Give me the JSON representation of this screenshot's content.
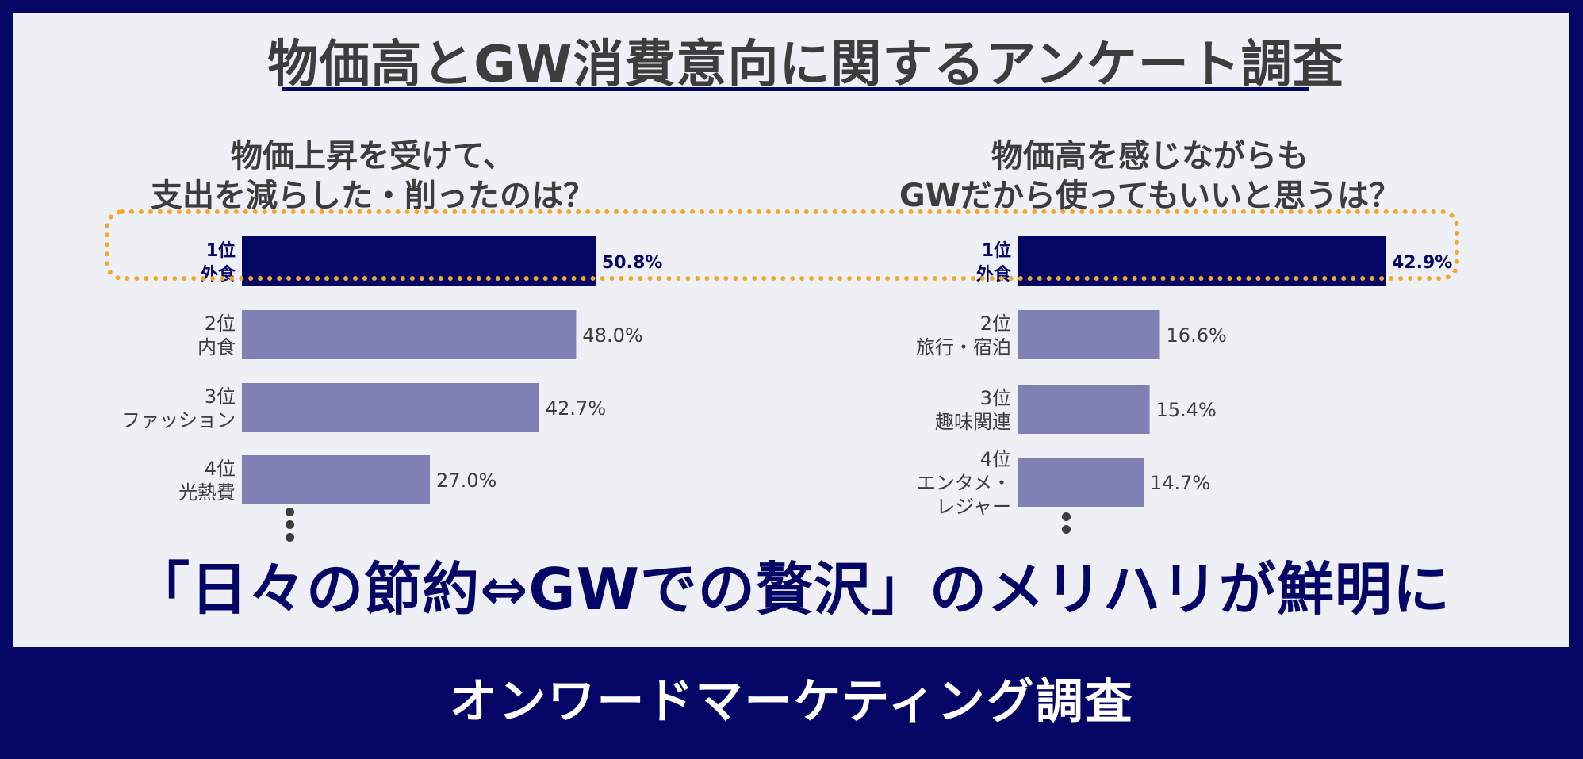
{
  "title": "物価高とGW消費意向に関するアンケート調査",
  "headline": "「日々の節約⇔GWでの贅沢」のメリハリが鮮明に",
  "footer": "オンワードマーケティング調査",
  "colors": {
    "navy": "#050566",
    "bar_top": "#050566",
    "bar_other": "#8080b4",
    "highlight": "#f0a92e",
    "text": "#3d3d3d"
  },
  "chart_data": [
    {
      "type": "bar",
      "orientation": "horizontal",
      "title_lines": [
        "物価上昇を受けて、",
        "支出を減らした・削ったのは？"
      ],
      "categories": [
        [
          "1位",
          "外食"
        ],
        [
          "2位",
          "内食"
        ],
        [
          "3位",
          "ファッション"
        ],
        [
          "4位",
          "光熱費"
        ]
      ],
      "values": [
        50.8,
        48.0,
        42.7,
        27.0
      ],
      "value_labels": [
        "50.8%",
        "48.0%",
        "42.7%",
        "27.0%"
      ]
    },
    {
      "type": "bar",
      "orientation": "horizontal",
      "title_lines": [
        "物価高を感じながらも",
        "GWだから使ってもいいと思うは？"
      ],
      "categories": [
        [
          "1位",
          "外食"
        ],
        [
          "2位",
          "旅行・宿泊"
        ],
        [
          "3位",
          "趣味関連"
        ],
        [
          "4位",
          "エンタメ・",
          "レジャー"
        ]
      ],
      "values": [
        42.9,
        16.6,
        15.4,
        14.7
      ],
      "value_labels": [
        "42.9%",
        "16.6%",
        "15.4%",
        "14.7%"
      ]
    }
  ]
}
